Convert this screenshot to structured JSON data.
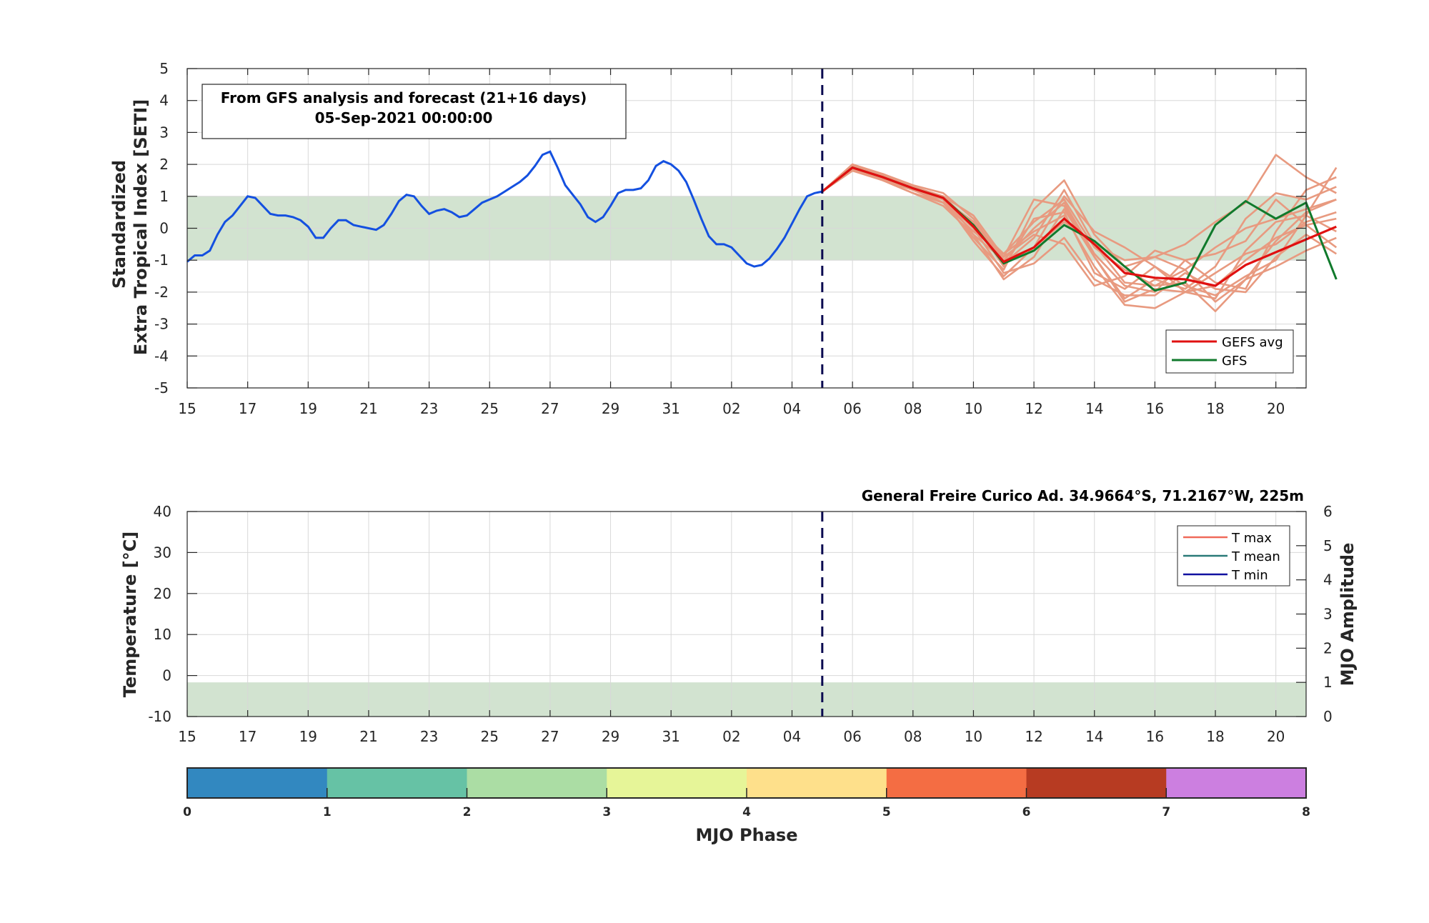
{
  "chart_data": [
    {
      "type": "line",
      "ylabel_line1": "Standardized",
      "ylabel_line2": "Extra Tropical Index [SETI]",
      "ylim": [
        -5,
        5
      ],
      "yticks": [
        "5",
        "4",
        "3",
        "2",
        "1",
        "0",
        "-1",
        "-2",
        "-3",
        "-4",
        "-5"
      ],
      "xticks": [
        "15",
        "17",
        "19",
        "21",
        "23",
        "25",
        "27",
        "29",
        "31",
        "02",
        "04",
        "06",
        "08",
        "10",
        "12",
        "14",
        "16",
        "18",
        "20"
      ],
      "grid": true,
      "annotation": {
        "line1": "From GFS analysis and forecast (21+16 days)",
        "line2": "05-Sep-2021 00:00:00"
      },
      "shaded_band": [
        -1,
        1
      ],
      "forecast_start_day": 21,
      "legend": {
        "placement": "bottom-right",
        "items": [
          "GEFS avg",
          "GFS"
        ]
      },
      "colors": {
        "analysis": "#1450e0",
        "members": "#e89a80",
        "gefs_avg": "#e01010",
        "gfs": "#107a2c",
        "band": "#d2e3d0",
        "divider": "#0a0a50"
      },
      "series": [
        {
          "name_key": "analysis",
          "x": [
            0,
            0.25,
            0.5,
            0.75,
            1,
            1.25,
            1.5,
            1.75,
            2,
            2.25,
            2.5,
            2.75,
            3,
            3.25,
            3.5,
            3.75,
            4,
            4.25,
            4.5,
            4.75,
            5,
            5.25,
            5.5,
            5.75,
            6,
            6.25,
            6.5,
            6.75,
            7,
            7.25,
            7.5,
            7.75,
            8,
            8.25,
            8.5,
            8.75,
            9,
            9.25,
            9.5,
            9.75,
            10,
            10.25,
            10.5,
            10.75,
            11,
            11.25,
            11.5,
            11.75,
            12,
            12.25,
            12.5,
            12.75,
            13,
            13.25,
            13.5,
            13.75,
            14,
            14.25,
            14.5,
            14.75,
            15,
            15.25,
            15.5,
            15.75,
            16,
            16.25,
            16.5,
            16.75,
            17,
            17.25,
            17.5,
            17.75,
            18,
            18.25,
            18.5,
            18.75,
            19,
            19.25,
            19.5,
            19.75,
            20,
            20.25,
            20.5,
            20.75,
            21
          ],
          "y": [
            -1.05,
            -0.85,
            -0.85,
            -0.7,
            -0.2,
            0.2,
            0.4,
            0.7,
            1.0,
            0.95,
            0.7,
            0.45,
            0.4,
            0.4,
            0.35,
            0.25,
            0.05,
            -0.3,
            -0.3,
            0.0,
            0.25,
            0.25,
            0.1,
            0.05,
            0.0,
            -0.05,
            0.1,
            0.45,
            0.85,
            1.05,
            1.0,
            0.7,
            0.45,
            0.55,
            0.6,
            0.5,
            0.35,
            0.4,
            0.6,
            0.8,
            0.9,
            1.0,
            1.15,
            1.3,
            1.45,
            1.65,
            1.95,
            2.3,
            2.4,
            1.9,
            1.35,
            1.05,
            0.75,
            0.35,
            0.2,
            0.35,
            0.7,
            1.1,
            1.2,
            1.2,
            1.25,
            1.5,
            1.95,
            2.1,
            2.0,
            1.8,
            1.45,
            0.9,
            0.3,
            -0.25,
            -0.5,
            -0.5,
            -0.6,
            -0.85,
            -1.1,
            -1.2,
            -1.15,
            -0.95,
            -0.65,
            -0.3,
            0.15,
            0.6,
            1.0,
            1.1,
            1.15
          ]
        }
      ],
      "members": [
        {
          "x": [
            21,
            22,
            23,
            24,
            25,
            26,
            27,
            28,
            29,
            30,
            31,
            32,
            33,
            34,
            35,
            36,
            37,
            38
          ],
          "y": [
            1.15,
            1.95,
            1.65,
            1.3,
            0.9,
            0.2,
            -1.1,
            -0.3,
            1.2,
            -0.5,
            -1.7,
            -1.8,
            -1.3,
            -0.6,
            0.0,
            0.3,
            0.6,
            0.9
          ]
        },
        {
          "x": [
            21,
            22,
            23,
            24,
            25,
            26,
            27,
            28,
            29,
            30,
            31,
            32,
            33,
            34,
            35,
            36,
            37,
            38
          ],
          "y": [
            1.15,
            1.85,
            1.6,
            1.2,
            1.0,
            -0.2,
            -1.6,
            -0.9,
            0.6,
            -0.9,
            -2.3,
            -1.9,
            -2.0,
            -1.4,
            -0.8,
            -0.5,
            0.2,
            0.5
          ]
        },
        {
          "x": [
            21,
            22,
            23,
            24,
            25,
            26,
            27,
            28,
            29,
            30,
            31,
            32,
            33,
            34,
            35,
            36,
            37,
            38
          ],
          "y": [
            1.15,
            1.9,
            1.5,
            1.1,
            0.8,
            -0.3,
            -1.3,
            0.6,
            1.5,
            -0.2,
            -1.2,
            -0.9,
            -0.5,
            0.2,
            0.8,
            2.3,
            1.6,
            1.1
          ]
        },
        {
          "x": [
            21,
            22,
            23,
            24,
            25,
            26,
            27,
            28,
            29,
            30,
            31,
            32,
            33,
            34,
            35,
            36,
            37,
            38
          ],
          "y": [
            1.15,
            2.0,
            1.6,
            1.3,
            1.0,
            0.1,
            -0.8,
            -0.1,
            0.4,
            -1.2,
            -2.4,
            -2.5,
            -2.0,
            -1.8,
            -1.0,
            -0.3,
            0.1,
            0.3
          ]
        },
        {
          "x": [
            21,
            22,
            23,
            24,
            25,
            26,
            27,
            28,
            29,
            30,
            31,
            32,
            33,
            34,
            35,
            36,
            37,
            38
          ],
          "y": [
            1.15,
            1.9,
            1.7,
            1.35,
            1.1,
            0.3,
            -1.0,
            -0.6,
            1.0,
            -0.1,
            -0.6,
            -1.2,
            -1.8,
            -2.1,
            -1.5,
            -1.0,
            0.4,
            1.9
          ]
        },
        {
          "x": [
            21,
            22,
            23,
            24,
            25,
            26,
            27,
            28,
            29,
            30,
            31,
            32,
            33,
            34,
            35,
            36,
            37,
            38
          ],
          "y": [
            1.15,
            1.8,
            1.5,
            1.2,
            0.8,
            -0.1,
            -0.8,
            0.2,
            0.9,
            -0.6,
            -1.3,
            -1.8,
            -1.7,
            -2.6,
            -1.6,
            -0.4,
            0.5,
            0.9
          ]
        },
        {
          "x": [
            21,
            22,
            23,
            24,
            25,
            26,
            27,
            28,
            29,
            30,
            31,
            32,
            33,
            34,
            35,
            36,
            37,
            38
          ],
          "y": [
            1.15,
            1.95,
            1.55,
            1.25,
            1.0,
            0.4,
            -0.9,
            0.9,
            0.7,
            -0.9,
            -2.2,
            -1.6,
            -1.9,
            -1.2,
            0.3,
            1.1,
            0.9,
            1.3
          ]
        },
        {
          "x": [
            21,
            22,
            23,
            24,
            25,
            26,
            27,
            28,
            29,
            30,
            31,
            32,
            33,
            34,
            35,
            36,
            37,
            38
          ],
          "y": [
            1.15,
            1.9,
            1.65,
            1.3,
            0.9,
            0.0,
            -1.4,
            -1.1,
            -0.3,
            -1.6,
            -2.1,
            -2.1,
            -1.4,
            -1.9,
            -2.0,
            -0.9,
            -0.2,
            -0.8
          ]
        },
        {
          "x": [
            21,
            22,
            23,
            24,
            25,
            26,
            27,
            28,
            29,
            30,
            31,
            32,
            33,
            34,
            35,
            36,
            37,
            38
          ],
          "y": [
            1.15,
            1.85,
            1.55,
            1.2,
            0.9,
            -0.4,
            -1.5,
            -0.6,
            0.2,
            -0.5,
            -1.0,
            -0.9,
            -1.3,
            -2.3,
            -1.6,
            -1.2,
            -0.7,
            -0.3
          ]
        },
        {
          "x": [
            21,
            22,
            23,
            24,
            25,
            26,
            27,
            28,
            29,
            30,
            31,
            32,
            33,
            34,
            35,
            36,
            37,
            38
          ],
          "y": [
            1.15,
            2.0,
            1.7,
            1.3,
            0.9,
            0.2,
            -1.2,
            0.3,
            0.5,
            -1.4,
            -1.9,
            -1.2,
            -2.0,
            -2.2,
            -0.7,
            0.2,
            0.4,
            -0.1
          ]
        },
        {
          "x": [
            21,
            22,
            23,
            24,
            25,
            26,
            27,
            28,
            29,
            30,
            31,
            32,
            33,
            34,
            35,
            36,
            37,
            38
          ],
          "y": [
            1.15,
            1.9,
            1.6,
            1.25,
            0.8,
            0.1,
            -0.9,
            -0.2,
            -0.5,
            -1.8,
            -1.5,
            -0.7,
            -1.0,
            -1.7,
            -1.9,
            -0.1,
            1.2,
            1.6
          ]
        },
        {
          "x": [
            21,
            22,
            23,
            24,
            25,
            26,
            27,
            28,
            29,
            30,
            31,
            32,
            33,
            34,
            35,
            36,
            37,
            38
          ],
          "y": [
            1.15,
            1.85,
            1.5,
            1.1,
            0.7,
            -0.2,
            -1.0,
            0.0,
            0.8,
            -0.8,
            -1.8,
            -2.0,
            -1.0,
            -0.8,
            -0.4,
            0.9,
            0.1,
            -0.6
          ]
        }
      ],
      "gefs_avg": {
        "x": [
          21,
          22,
          23,
          24,
          25,
          26,
          27,
          28,
          29,
          30,
          31,
          32,
          33,
          34,
          35,
          36,
          37,
          38
        ],
        "y": [
          1.15,
          1.9,
          1.6,
          1.25,
          0.95,
          0.05,
          -1.05,
          -0.6,
          0.3,
          -0.5,
          -1.4,
          -1.55,
          -1.6,
          -1.8,
          -1.15,
          -0.75,
          -0.35,
          0.05
        ]
      },
      "gfs_line": {
        "x": [
          21,
          22,
          23,
          24,
          25,
          26,
          27,
          28,
          29,
          30,
          31,
          32,
          33,
          34,
          35,
          36,
          37,
          38
        ],
        "y": [
          1.15,
          1.9,
          1.6,
          1.25,
          0.95,
          0.1,
          -1.1,
          -0.7,
          0.1,
          -0.4,
          -1.2,
          -1.95,
          -1.7,
          0.1,
          0.85,
          0.3,
          0.8,
          -1.6
        ]
      }
    },
    {
      "type": "line",
      "ylabel": "Temperature [°C]",
      "y2label": "MJO Amplitude",
      "ylim": [
        -10,
        40
      ],
      "y2lim": [
        0,
        6
      ],
      "yticks": [
        "40",
        "30",
        "20",
        "10",
        "0",
        "-10"
      ],
      "y2ticks": [
        "6",
        "5",
        "4",
        "3",
        "2",
        "1",
        "0"
      ],
      "xticks": [
        "15",
        "17",
        "19",
        "21",
        "23",
        "25",
        "27",
        "29",
        "31",
        "02",
        "04",
        "06",
        "08",
        "10",
        "12",
        "14",
        "16",
        "18",
        "20"
      ],
      "grid": true,
      "station_title": "General Freire Curico Ad. 34.9664°S, 71.2167°W, 225m",
      "shaded_band_amplitude": [
        0,
        1
      ],
      "legend": {
        "placement": "top-right",
        "items": [
          "T max",
          "T mean",
          "T min"
        ]
      },
      "colors": {
        "tmax": "#f06a5a",
        "tmean": "#2a7a78",
        "tmin": "#1010a0",
        "band": "#d2e3d0"
      }
    },
    {
      "type": "colorbar",
      "xlabel": "MJO Phase",
      "ticks": [
        "0",
        "1",
        "2",
        "3",
        "4",
        "5",
        "6",
        "7",
        "8"
      ],
      "colors": [
        "#3288c0",
        "#66c2a5",
        "#abdda4",
        "#e6f598",
        "#fee08b",
        "#f46d43",
        "#b73b22",
        "#cc7fe0"
      ]
    }
  ]
}
